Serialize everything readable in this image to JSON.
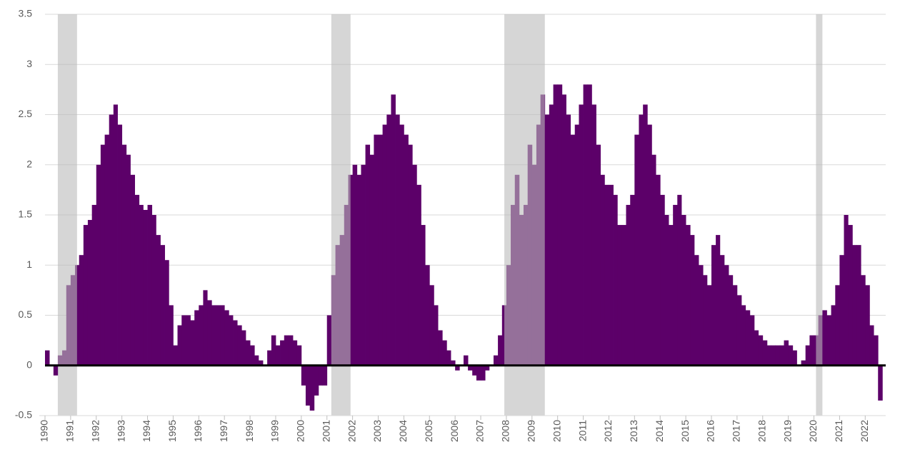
{
  "chart_data": {
    "type": "bar",
    "color": "#5c0069",
    "recession_color": "#bbbbbb",
    "recessions": [
      [
        1990.5,
        1991.25
      ],
      [
        2001.17,
        2001.92
      ],
      [
        2007.92,
        2009.5
      ],
      [
        2020.08,
        2020.33
      ]
    ],
    "xlim": [
      1990,
      2022.8
    ],
    "xticks": [
      1990,
      1991,
      1992,
      1993,
      1994,
      1995,
      1996,
      1997,
      1998,
      1999,
      2000,
      2001,
      2002,
      2003,
      2004,
      2005,
      2006,
      2007,
      2008,
      2009,
      2010,
      2011,
      2012,
      2013,
      2014,
      2015,
      2016,
      2017,
      2018,
      2019,
      2020,
      2021,
      2022
    ],
    "ylim": [
      -0.5,
      3.5
    ],
    "yticks": [
      -0.5,
      0,
      0.5,
      1,
      1.5,
      2,
      2.5,
      3,
      3.5
    ],
    "grid": true,
    "x": [
      1990,
      1990.17,
      1990.33,
      1990.5,
      1990.67,
      1990.83,
      1991,
      1991.17,
      1991.33,
      1991.5,
      1991.67,
      1991.83,
      1992,
      1992.17,
      1992.33,
      1992.5,
      1992.67,
      1992.83,
      1993,
      1993.17,
      1993.33,
      1993.5,
      1993.67,
      1993.83,
      1994,
      1994.17,
      1994.33,
      1994.5,
      1994.67,
      1994.83,
      1995,
      1995.17,
      1995.33,
      1995.5,
      1995.67,
      1995.83,
      1996,
      1996.17,
      1996.33,
      1996.5,
      1996.67,
      1996.83,
      1997,
      1997.17,
      1997.33,
      1997.5,
      1997.67,
      1997.83,
      1998,
      1998.17,
      1998.33,
      1998.5,
      1998.67,
      1998.83,
      1999,
      1999.17,
      1999.33,
      1999.5,
      1999.67,
      1999.83,
      2000,
      2000.17,
      2000.33,
      2000.5,
      2000.67,
      2000.83,
      2001,
      2001.17,
      2001.33,
      2001.5,
      2001.67,
      2001.83,
      2002,
      2002.17,
      2002.33,
      2002.5,
      2002.67,
      2002.83,
      2003,
      2003.17,
      2003.33,
      2003.5,
      2003.67,
      2003.83,
      2004,
      2004.17,
      2004.33,
      2004.5,
      2004.67,
      2004.83,
      2005,
      2005.17,
      2005.33,
      2005.5,
      2005.67,
      2005.83,
      2006,
      2006.17,
      2006.33,
      2006.5,
      2006.67,
      2006.83,
      2007,
      2007.17,
      2007.33,
      2007.5,
      2007.67,
      2007.83,
      2008,
      2008.17,
      2008.33,
      2008.5,
      2008.67,
      2008.83,
      2009,
      2009.17,
      2009.33,
      2009.5,
      2009.67,
      2009.83,
      2010,
      2010.17,
      2010.33,
      2010.5,
      2010.67,
      2010.83,
      2011,
      2011.17,
      2011.33,
      2011.5,
      2011.67,
      2011.83,
      2012,
      2012.17,
      2012.33,
      2012.5,
      2012.67,
      2012.83,
      2013,
      2013.17,
      2013.33,
      2013.5,
      2013.67,
      2013.83,
      2014,
      2014.17,
      2014.33,
      2014.5,
      2014.67,
      2014.83,
      2015,
      2015.17,
      2015.33,
      2015.5,
      2015.67,
      2015.83,
      2016,
      2016.17,
      2016.33,
      2016.5,
      2016.67,
      2016.83,
      2017,
      2017.17,
      2017.33,
      2017.5,
      2017.67,
      2017.83,
      2018,
      2018.17,
      2018.33,
      2018.5,
      2018.67,
      2018.83,
      2019,
      2019.17,
      2019.33,
      2019.5,
      2019.67,
      2019.83,
      2020,
      2020.17,
      2020.33,
      2020.5,
      2020.67,
      2020.83,
      2021,
      2021.17,
      2021.33,
      2021.5,
      2021.67,
      2021.83,
      2022,
      2022.17,
      2022.33,
      2022.5
    ],
    "values": [
      0.15,
      0.0,
      -0.1,
      0.1,
      0.15,
      0.8,
      0.9,
      1.0,
      1.1,
      1.4,
      1.45,
      1.6,
      2.0,
      2.2,
      2.3,
      2.5,
      2.6,
      2.4,
      2.2,
      2.1,
      1.9,
      1.7,
      1.6,
      1.55,
      1.6,
      1.5,
      1.3,
      1.2,
      1.05,
      0.6,
      0.2,
      0.4,
      0.5,
      0.5,
      0.45,
      0.55,
      0.6,
      0.75,
      0.65,
      0.6,
      0.6,
      0.6,
      0.55,
      0.5,
      0.45,
      0.4,
      0.35,
      0.25,
      0.2,
      0.1,
      0.05,
      0.0,
      0.15,
      0.3,
      0.2,
      0.25,
      0.3,
      0.3,
      0.25,
      0.2,
      -0.2,
      -0.4,
      -0.45,
      -0.3,
      -0.2,
      -0.2,
      0.5,
      0.9,
      1.2,
      1.3,
      1.6,
      1.9,
      2.0,
      1.9,
      2.0,
      2.2,
      2.1,
      2.3,
      2.3,
      2.4,
      2.5,
      2.7,
      2.5,
      2.4,
      2.3,
      2.2,
      2.0,
      1.8,
      1.4,
      1.0,
      0.8,
      0.6,
      0.35,
      0.25,
      0.15,
      0.05,
      -0.05,
      0.0,
      0.1,
      -0.05,
      -0.1,
      -0.15,
      -0.15,
      -0.05,
      0.0,
      0.1,
      0.3,
      0.6,
      1.0,
      1.6,
      1.9,
      1.5,
      1.6,
      2.2,
      2.0,
      2.4,
      2.7,
      2.5,
      2.6,
      2.8,
      2.8,
      2.7,
      2.5,
      2.3,
      2.4,
      2.6,
      2.8,
      2.8,
      2.6,
      2.2,
      1.9,
      1.8,
      1.8,
      1.7,
      1.4,
      1.4,
      1.6,
      1.7,
      2.3,
      2.5,
      2.6,
      2.4,
      2.1,
      1.9,
      1.7,
      1.5,
      1.4,
      1.6,
      1.7,
      1.5,
      1.4,
      1.3,
      1.1,
      1.0,
      0.9,
      0.8,
      1.2,
      1.3,
      1.1,
      1.0,
      0.9,
      0.8,
      0.7,
      0.6,
      0.55,
      0.5,
      0.35,
      0.3,
      0.25,
      0.2,
      0.2,
      0.2,
      0.2,
      0.25,
      0.2,
      0.15,
      0.0,
      0.05,
      0.2,
      0.3,
      0.3,
      0.5,
      0.55,
      0.5,
      0.6,
      0.8,
      1.1,
      1.5,
      1.4,
      1.2,
      1.2,
      0.9,
      0.8,
      0.4,
      0.3,
      -0.35
    ]
  }
}
